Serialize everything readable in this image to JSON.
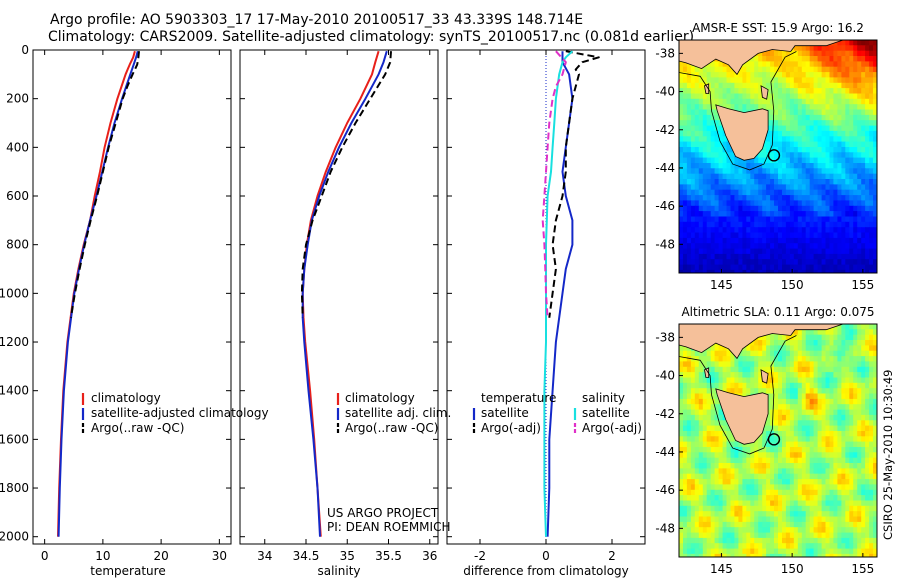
{
  "header": {
    "line1": "Argo profile: AO 5903303_17 17-May-2010 20100517_33 43.339S 148.714E",
    "line2": "Climatology: CARS2009. Satellite-adjusted climatology: synTS_20100517.nc (0.081d earlier)"
  },
  "side_label": "CSIRO 25-May-2010 10:30:49",
  "colors": {
    "climatology": "#e8201a",
    "satellite": "#1428c8",
    "argo": "#000000",
    "sal_satellite": "#18e0e0",
    "sal_argo": "#e030c8",
    "land": "#f5c09a"
  },
  "chart_data": [
    {
      "type": "line",
      "ylabel_ticks": [
        0,
        200,
        400,
        600,
        800,
        1000,
        1200,
        1400,
        1600,
        1800,
        2000
      ],
      "ylim": [
        2030,
        0
      ],
      "xlim": [
        -2,
        32
      ],
      "xticks": [
        0,
        10,
        20,
        30
      ],
      "xlabel": "temperature",
      "legend": [
        "climatology",
        "satellite-adjusted climatology",
        "Argo(..raw -QC)"
      ],
      "series": [
        {
          "name": "climatology",
          "style": "solid",
          "color": "#e8201a",
          "y": [
            5,
            30,
            60,
            100,
            150,
            200,
            300,
            400,
            500,
            600,
            700,
            800,
            900,
            1000,
            1200,
            1400,
            1600,
            1800,
            2000
          ],
          "x": [
            15.5,
            15.2,
            14.6,
            13.9,
            13.2,
            12.5,
            11.3,
            10.3,
            9.5,
            8.6,
            7.8,
            6.7,
            5.8,
            5.0,
            3.9,
            3.2,
            2.8,
            2.5,
            2.3
          ]
        },
        {
          "name": "satellite-adjusted climatology",
          "style": "solid",
          "color": "#1428c8",
          "y": [
            5,
            30,
            60,
            100,
            150,
            200,
            300,
            400,
            500,
            600,
            700,
            800,
            900,
            1000,
            1200,
            1400,
            1600,
            1800,
            2000
          ],
          "x": [
            16.0,
            15.7,
            15.3,
            14.7,
            14.0,
            13.3,
            12.0,
            10.9,
            9.9,
            8.9,
            7.8,
            6.8,
            5.9,
            5.1,
            4.0,
            3.3,
            2.9,
            2.6,
            2.4
          ]
        },
        {
          "name": "Argo(..raw -QC)",
          "style": "dash",
          "color": "#000000",
          "y": [
            5,
            30,
            60,
            100,
            150,
            200,
            300,
            400,
            500,
            600,
            700,
            800,
            900,
            1000,
            1100
          ],
          "x": [
            16.2,
            16.1,
            15.9,
            15.1,
            14.2,
            13.4,
            12.2,
            11.0,
            10.0,
            9.0,
            7.9,
            6.9,
            6.0,
            5.2,
            4.5
          ]
        }
      ]
    },
    {
      "type": "line",
      "ylim": [
        2030,
        0
      ],
      "xlim": [
        33.7,
        36.1
      ],
      "xticks": [
        34,
        34.5,
        35,
        35.5,
        36
      ],
      "xlabel": "salinity",
      "legend": [
        "climatology",
        "satellite adj. clim.",
        "Argo(..raw -QC)"
      ],
      "annotation": [
        "US ARGO PROJECT",
        "PI: DEAN ROEMMICH"
      ],
      "series": [
        {
          "name": "climatology",
          "style": "solid",
          "color": "#e8201a",
          "y": [
            5,
            50,
            100,
            200,
            300,
            400,
            500,
            600,
            700,
            800,
            900,
            1000,
            1100,
            1200,
            1400,
            1600,
            1800,
            2000
          ],
          "x": [
            35.38,
            35.34,
            35.3,
            35.16,
            35.0,
            34.86,
            34.74,
            34.64,
            34.56,
            34.51,
            34.48,
            34.46,
            34.47,
            34.49,
            34.55,
            34.6,
            34.64,
            34.68
          ]
        },
        {
          "name": "satellite adj. clim.",
          "style": "solid",
          "color": "#1428c8",
          "y": [
            5,
            50,
            100,
            200,
            300,
            400,
            500,
            600,
            700,
            800,
            900,
            1000,
            1100,
            1200,
            1400,
            1600,
            1800,
            2000
          ],
          "x": [
            35.48,
            35.44,
            35.38,
            35.22,
            35.05,
            34.9,
            34.77,
            34.66,
            34.57,
            34.52,
            34.48,
            34.46,
            34.46,
            34.48,
            34.53,
            34.59,
            34.64,
            34.67
          ]
        },
        {
          "name": "Argo(..raw -QC)",
          "style": "dash",
          "color": "#000000",
          "y": [
            5,
            50,
            100,
            200,
            300,
            400,
            500,
            600,
            700,
            800,
            900,
            1000,
            1100
          ],
          "x": [
            35.53,
            35.52,
            35.46,
            35.28,
            35.1,
            34.94,
            34.8,
            34.69,
            34.58,
            34.5,
            34.46,
            34.45,
            34.46
          ]
        }
      ]
    },
    {
      "type": "line",
      "ylim": [
        2030,
        0
      ],
      "xlim": [
        -3,
        3
      ],
      "xticks": [
        -2,
        0,
        2
      ],
      "xlabel": "difference from climatology",
      "legend_temperature": {
        "title": "temperature",
        "items": [
          "satellite",
          "Argo(-adj)"
        ]
      },
      "legend_salinity": {
        "title": "salinity",
        "items": [
          "satellite",
          "Argo(-adj)"
        ]
      },
      "series": [
        {
          "name": "temperature satellite",
          "style": "solid",
          "color": "#1428c8",
          "y": [
            5,
            50,
            100,
            200,
            300,
            400,
            500,
            600,
            700,
            800,
            900,
            1000,
            1200,
            1400,
            1600,
            1800,
            2000
          ],
          "x": [
            0.5,
            0.5,
            0.7,
            0.8,
            0.7,
            0.6,
            0.5,
            0.6,
            0.8,
            0.8,
            0.6,
            0.5,
            0.3,
            0.2,
            0.1,
            0.1,
            0.05
          ]
        },
        {
          "name": "temperature Argo(-adj)",
          "style": "dash",
          "color": "#000000",
          "y": [
            5,
            30,
            50,
            80,
            100,
            150,
            200,
            300,
            400,
            500,
            600,
            700,
            800,
            900,
            1000,
            1100
          ],
          "x": [
            0.6,
            1.6,
            1.1,
            0.9,
            1.0,
            0.9,
            0.8,
            0.7,
            0.6,
            0.6,
            0.5,
            0.3,
            0.2,
            0.3,
            0.2,
            0.1
          ]
        },
        {
          "name": "salinity satellite",
          "style": "solid",
          "color": "#18e0e0",
          "y": [
            5,
            30,
            50,
            100,
            200,
            300,
            400,
            500,
            600,
            800,
            1000,
            1200,
            1400,
            1600,
            1800,
            2000
          ],
          "x": [
            0.8,
            0.6,
            0.5,
            0.4,
            0.3,
            0.25,
            0.2,
            0.15,
            0.05,
            0.0,
            0.0,
            0.0,
            -0.05,
            -0.05,
            -0.05,
            0.0
          ]
        },
        {
          "name": "salinity Argo(-adj)",
          "style": "dash",
          "color": "#e030c8",
          "y": [
            5,
            50,
            100,
            150,
            200,
            300,
            400,
            500,
            600,
            700,
            800,
            900,
            1000,
            1100
          ],
          "x": [
            0.3,
            0.6,
            0.5,
            0.3,
            0.2,
            0.1,
            0.05,
            0.0,
            -0.05,
            -0.1,
            -0.05,
            -0.02,
            0.0,
            0.05
          ]
        }
      ]
    },
    {
      "type": "heatmap",
      "title": "AMSR-E SST: 15.9  Argo: 16.2",
      "xlim": [
        142,
        156
      ],
      "ylim": [
        -49.5,
        -37.3
      ],
      "xticks": [
        145,
        150,
        155
      ],
      "yticks": [
        -38,
        -40,
        -42,
        -44,
        -46,
        -48
      ],
      "float_position": {
        "lon": 148.714,
        "lat": -43.339
      }
    },
    {
      "type": "heatmap",
      "title": "Altimetric SLA: 0.11  Argo: 0.075",
      "xlim": [
        142,
        156
      ],
      "ylim": [
        -49.5,
        -37.3
      ],
      "xticks": [
        145,
        150,
        155
      ],
      "yticks": [
        -38,
        -40,
        -42,
        -44,
        -46,
        -48
      ],
      "float_position": {
        "lon": 148.714,
        "lat": -43.339
      }
    }
  ]
}
